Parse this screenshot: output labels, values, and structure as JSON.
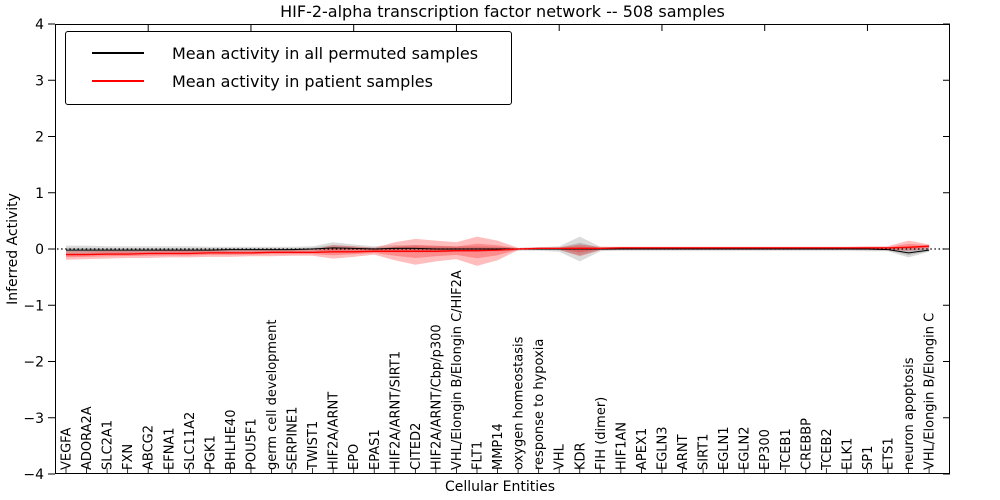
{
  "figure": {
    "title": "HIF-2-alpha transcription factor network -- 508 samples",
    "xlabel": "Cellular Entities",
    "ylabel": "Inferred Activity"
  },
  "legend": {
    "entries": [
      {
        "label": "Mean activity in all permuted samples",
        "color": "#000000"
      },
      {
        "label": "Mean activity in patient samples",
        "color": "#ff0000"
      }
    ]
  },
  "chart_data": {
    "type": "line",
    "title": "HIF-2-alpha transcription factor network -- 508 samples",
    "xlabel": "Cellular Entities",
    "ylabel": "Inferred Activity",
    "ylim": [
      -4,
      4
    ],
    "grid": false,
    "zero_reference_line": true,
    "legend_position": "upper left",
    "yticks": [
      {
        "v": 4,
        "label": "4"
      },
      {
        "v": 3,
        "label": "3"
      },
      {
        "v": 2,
        "label": "2"
      },
      {
        "v": 1,
        "label": "1"
      },
      {
        "v": 0,
        "label": "0"
      },
      {
        "v": -1,
        "label": "−1"
      },
      {
        "v": -2,
        "label": "−2"
      },
      {
        "v": -3,
        "label": "−3"
      },
      {
        "v": -4,
        "label": "−4"
      }
    ],
    "categories": [
      "VEGFA",
      "ADORA2A",
      "SLC2A1",
      "FXN",
      "ABCG2",
      "EFNA1",
      "SLC11A2",
      "PGK1",
      "BHLHE40",
      "POU5F1",
      "germ cell development",
      "SERPINE1",
      "TWIST1",
      "HIF2A/ARNT",
      "EPO",
      "EPAS1",
      "HIF2A/ARNT/SIRT1",
      "CITED2",
      "HIF2A/ARNT/Cbp/p300",
      "VHL/Elongin B/Elongin C/HIF2A",
      "FLT1",
      "MMP14",
      "oxygen homeostasis",
      "response to hypoxia",
      "VHL",
      "KDR",
      "FIH (dimer)",
      "HIF1AN",
      "APEX1",
      "EGLN3",
      "ARNT",
      "SIRT1",
      "EGLN1",
      "EGLN2",
      "EP300",
      "TCEB1",
      "CREBBP",
      "TCEB2",
      "ELK1",
      "SP1",
      "ETS1",
      "neuron apoptosis",
      "VHL/Elongin B/Elongin C"
    ],
    "series": [
      {
        "name": "Mean activity in all permuted samples",
        "color": "#000000",
        "band_color": "rgba(0,0,0,0.14)",
        "values": [
          -0.02,
          -0.02,
          -0.02,
          -0.02,
          -0.02,
          -0.02,
          -0.02,
          -0.02,
          -0.01,
          -0.01,
          -0.01,
          -0.01,
          0.0,
          0.02,
          0.01,
          0.0,
          0.01,
          0.01,
          0.0,
          0.0,
          0.0,
          0.0,
          0.0,
          0.0,
          0.0,
          0.0,
          0.0,
          0.0,
          0.0,
          0.0,
          0.0,
          0.0,
          0.0,
          0.0,
          0.0,
          0.0,
          0.0,
          0.0,
          0.0,
          0.0,
          -0.01,
          -0.07,
          -0.02
        ],
        "band_upper": [
          0.06,
          0.06,
          0.05,
          0.05,
          0.05,
          0.05,
          0.05,
          0.04,
          0.04,
          0.04,
          0.04,
          0.04,
          0.05,
          0.12,
          0.08,
          0.05,
          0.07,
          0.07,
          0.06,
          0.05,
          0.05,
          0.04,
          0.02,
          0.03,
          0.05,
          0.22,
          0.04,
          0.03,
          0.03,
          0.03,
          0.03,
          0.03,
          0.03,
          0.03,
          0.03,
          0.03,
          0.03,
          0.03,
          0.03,
          0.03,
          0.03,
          0.05,
          0.04
        ],
        "band_lower": [
          -0.1,
          -0.1,
          -0.09,
          -0.09,
          -0.08,
          -0.08,
          -0.08,
          -0.07,
          -0.07,
          -0.06,
          -0.06,
          -0.06,
          -0.05,
          -0.06,
          -0.05,
          -0.05,
          -0.06,
          -0.06,
          -0.06,
          -0.05,
          -0.05,
          -0.04,
          -0.03,
          -0.03,
          -0.05,
          -0.22,
          -0.04,
          -0.03,
          -0.03,
          -0.03,
          -0.03,
          -0.03,
          -0.03,
          -0.03,
          -0.03,
          -0.03,
          -0.03,
          -0.03,
          -0.03,
          -0.04,
          -0.04,
          -0.15,
          -0.05
        ]
      },
      {
        "name": "Mean activity in patient samples",
        "color": "#ff0000",
        "band_color": "rgba(255,0,0,0.26)",
        "values": [
          -0.1,
          -0.1,
          -0.09,
          -0.09,
          -0.08,
          -0.08,
          -0.08,
          -0.07,
          -0.07,
          -0.07,
          -0.06,
          -0.06,
          -0.06,
          -0.05,
          -0.05,
          -0.04,
          -0.04,
          -0.04,
          -0.04,
          -0.03,
          -0.03,
          -0.02,
          0.0,
          0.01,
          0.01,
          0.01,
          0.01,
          0.02,
          0.02,
          0.02,
          0.02,
          0.02,
          0.02,
          0.02,
          0.02,
          0.02,
          0.02,
          0.02,
          0.02,
          0.02,
          0.02,
          0.03,
          0.05
        ],
        "band_upper": [
          -0.04,
          -0.04,
          -0.03,
          -0.03,
          -0.03,
          -0.02,
          -0.02,
          -0.02,
          -0.02,
          -0.02,
          -0.01,
          -0.01,
          -0.01,
          0.07,
          0.05,
          0.02,
          0.12,
          0.18,
          0.15,
          0.12,
          0.22,
          0.15,
          0.02,
          0.03,
          0.03,
          0.08,
          0.04,
          0.04,
          0.04,
          0.04,
          0.04,
          0.04,
          0.04,
          0.04,
          0.04,
          0.04,
          0.04,
          0.04,
          0.04,
          0.05,
          0.05,
          0.15,
          0.08
        ],
        "band_lower": [
          -0.19,
          -0.18,
          -0.17,
          -0.16,
          -0.16,
          -0.15,
          -0.15,
          -0.14,
          -0.14,
          -0.13,
          -0.13,
          -0.12,
          -0.12,
          -0.17,
          -0.14,
          -0.1,
          -0.2,
          -0.28,
          -0.22,
          -0.18,
          -0.3,
          -0.2,
          -0.02,
          -0.01,
          -0.01,
          -0.13,
          -0.02,
          -0.01,
          -0.01,
          -0.01,
          -0.01,
          -0.01,
          -0.01,
          -0.01,
          -0.01,
          -0.01,
          -0.01,
          -0.01,
          -0.01,
          -0.01,
          -0.02,
          -0.03,
          0.0
        ]
      }
    ]
  }
}
